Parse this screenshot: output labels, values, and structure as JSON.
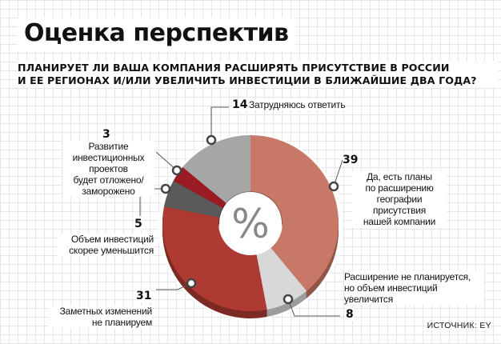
{
  "title": "Оценка перспектив",
  "question": [
    "ПЛАНИРУЕТ ЛИ ВАША КОМПАНИЯ РАСШИРЯТЬ ПРИСУТСТВИЕ В РОССИИ",
    "И ЕЕ РЕГИОНАХ И/ИЛИ УВЕЛИЧИТЬ ИНВЕСТИЦИИ В БЛИЖАЙШИЕ ДВА ГОДА?"
  ],
  "center_symbol": "%",
  "source": "ИСТОЧНИК: EY",
  "chart_data": {
    "type": "pie",
    "variant": "donut",
    "unit": "%",
    "slices": [
      {
        "value": 39,
        "label": [
          "Да, есть планы",
          "по расширению",
          "географии",
          "присутствия",
          "нашей компании"
        ],
        "color": "#c87866"
      },
      {
        "value": 8,
        "label": [
          "Расширение не планируется,",
          "но объем инвестиций",
          "увеличится"
        ],
        "color": "#d8d8d8"
      },
      {
        "value": 31,
        "label": [
          "Заметных изменений",
          "не планируем"
        ],
        "color": "#ae3a33"
      },
      {
        "value": 5,
        "label": [
          "Объем инвестиций",
          "скорее уменьшится"
        ],
        "color": "#5a5a5a"
      },
      {
        "value": 3,
        "label": [
          "Развитие",
          "инвестиционных",
          "проектов",
          "будет отложено/",
          "заморожено"
        ],
        "color": "#9b1b24"
      },
      {
        "value": 14,
        "label": [
          "Затрудняюсь ответить"
        ],
        "color": "#a6a6a6"
      }
    ]
  }
}
